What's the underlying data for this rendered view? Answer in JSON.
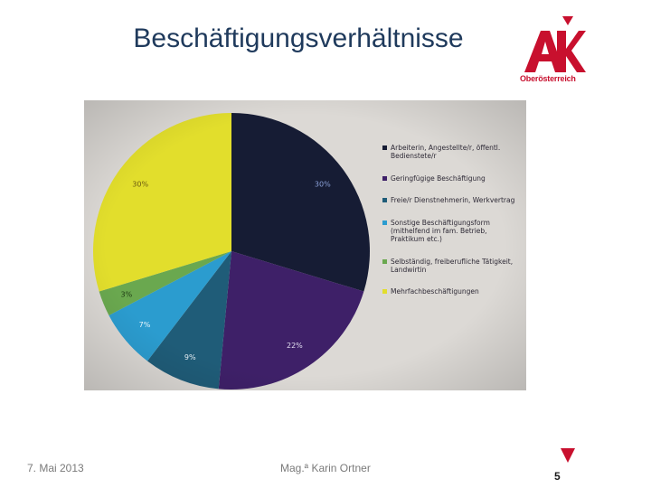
{
  "slide": {
    "title": "Beschäftigungsverhältnisse",
    "logo_text": "Oberösterreich",
    "footer_date": "7. Mai 2013",
    "footer_author": "Mag.ª Karin Ortner",
    "page_number": "5"
  },
  "colors": {
    "title": "#1f3a5c",
    "brand_red": "#c8102e"
  },
  "chart_data": {
    "type": "pie",
    "title": "",
    "slices": [
      {
        "label": "Arbeiterin, Angestellte/r, öffentl. Bedienstete/r",
        "value": 30,
        "display": "30%",
        "color": "#161c34"
      },
      {
        "label": "Geringfügige Beschäftigung",
        "value": 22,
        "display": "22%",
        "color": "#3e2068"
      },
      {
        "label": "Freie/r Dienstnehmerin, Werkvertrag",
        "value": 9,
        "display": "9%",
        "color": "#1f5c78"
      },
      {
        "label": "Sonstige Beschäftigungsform (mithelfend im fam. Betrieb, Praktikum etc.)",
        "value": 7,
        "display": "7%",
        "color": "#2b9ccf"
      },
      {
        "label": "Selbständig, freiberufliche Tätigkeit, Landwirtin",
        "value": 3,
        "display": "3%",
        "color": "#6aa84f"
      },
      {
        "label": "Mehrfachbeschäftigungen",
        "value": 30,
        "display": "30%",
        "color": "#e2de2c"
      }
    ],
    "legend_position": "right"
  }
}
